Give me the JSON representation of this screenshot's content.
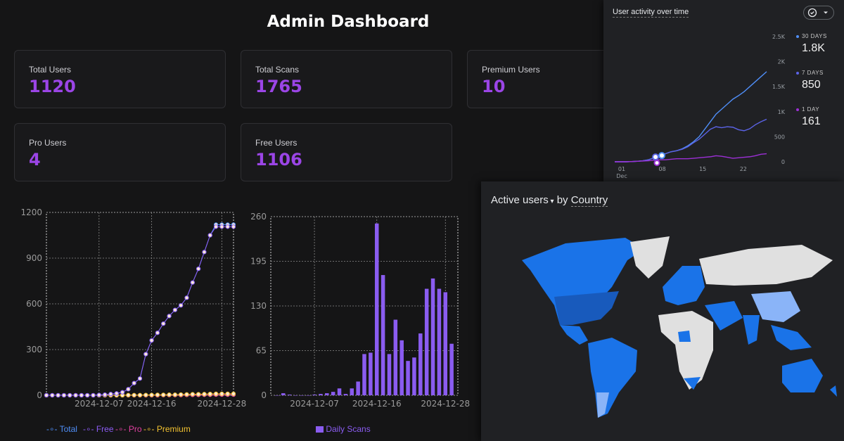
{
  "page": {
    "title": "Admin Dashboard"
  },
  "stats": [
    {
      "label": "Total Users",
      "value": "1120"
    },
    {
      "label": "Total Scans",
      "value": "1765"
    },
    {
      "label": "Premium Users",
      "value": "10"
    },
    {
      "label": "Pro Users",
      "value": "4"
    },
    {
      "label": "Free Users",
      "value": "1106"
    }
  ],
  "colors": {
    "accent": "#9b45e6",
    "total": "#4f8ef7",
    "free": "#8c5cf5",
    "pro": "#e040a0",
    "premium": "#f2c230",
    "scans": "#8a5cf0"
  },
  "chart_data": [
    {
      "type": "line",
      "x": [
        "2024-11-28",
        "2024-11-29",
        "2024-11-30",
        "2024-12-01",
        "2024-12-02",
        "2024-12-03",
        "2024-12-04",
        "2024-12-05",
        "2024-12-06",
        "2024-12-07",
        "2024-12-08",
        "2024-12-09",
        "2024-12-10",
        "2024-12-11",
        "2024-12-12",
        "2024-12-13",
        "2024-12-14",
        "2024-12-15",
        "2024-12-16",
        "2024-12-17",
        "2024-12-18",
        "2024-12-19",
        "2024-12-20",
        "2024-12-21",
        "2024-12-22",
        "2024-12-23",
        "2024-12-24",
        "2024-12-25",
        "2024-12-26",
        "2024-12-27",
        "2024-12-28",
        "2024-12-29",
        "2024-12-30"
      ],
      "xticks": [
        "2024-12-07",
        "2024-12-16",
        "2024-12-28"
      ],
      "ylim": [
        0,
        1200
      ],
      "yticks": [
        0,
        300,
        600,
        900,
        1200
      ],
      "series": [
        {
          "name": "Total",
          "values": [
            0,
            0,
            0,
            0,
            0,
            0,
            0,
            0,
            0,
            2,
            4,
            8,
            12,
            20,
            40,
            80,
            110,
            270,
            360,
            410,
            470,
            520,
            560,
            590,
            640,
            740,
            830,
            940,
            1050,
            1120,
            1120,
            1120,
            1120
          ]
        },
        {
          "name": "Free",
          "values": [
            0,
            0,
            0,
            0,
            0,
            0,
            0,
            0,
            0,
            2,
            4,
            8,
            12,
            20,
            40,
            80,
            110,
            270,
            360,
            410,
            470,
            520,
            560,
            590,
            640,
            740,
            830,
            940,
            1050,
            1106,
            1106,
            1106,
            1106
          ]
        },
        {
          "name": "Pro",
          "values": [
            0,
            0,
            0,
            0,
            0,
            0,
            0,
            0,
            0,
            0,
            0,
            0,
            0,
            0,
            0,
            0,
            0,
            0,
            0,
            0,
            1,
            1,
            1,
            1,
            2,
            2,
            2,
            3,
            3,
            4,
            4,
            4,
            4
          ]
        },
        {
          "name": "Premium",
          "values": [
            0,
            0,
            0,
            0,
            0,
            0,
            0,
            0,
            0,
            0,
            0,
            0,
            0,
            0,
            1,
            1,
            1,
            2,
            2,
            3,
            3,
            4,
            4,
            5,
            6,
            7,
            7,
            8,
            9,
            10,
            10,
            10,
            10
          ]
        }
      ],
      "legend": [
        "Total",
        "Free",
        "Pro",
        "Premium"
      ],
      "grid": true,
      "legend_position": "bottom"
    },
    {
      "type": "bar",
      "ylim": [
        0,
        260
      ],
      "yticks": [
        0,
        65,
        130,
        195,
        260
      ],
      "xticks": [
        "2024-12-07",
        "2024-12-16",
        "2024-12-28"
      ],
      "series": [
        {
          "name": "Daily Scans",
          "values": [
            0,
            3,
            1,
            0,
            0,
            0,
            1,
            2,
            3,
            5,
            10,
            2,
            10,
            20,
            60,
            62,
            250,
            175,
            60,
            110,
            80,
            50,
            55,
            90,
            155,
            170,
            155,
            150,
            75
          ]
        }
      ],
      "grid": true,
      "legend_position": "bottom"
    },
    {
      "type": "line",
      "title": "User activity over time",
      "xticks": [
        "01",
        "08",
        "15",
        "22"
      ],
      "xsub": "Dec",
      "yticks": [
        "0",
        "500",
        "1K",
        "1.5K",
        "2K",
        "2.5K"
      ],
      "ylim": [
        0,
        2500
      ],
      "series": [
        {
          "name": "30 DAYS",
          "summary": "1.8K",
          "values": [
            0,
            0,
            0,
            5,
            10,
            20,
            40,
            80,
            120,
            160,
            200,
            220,
            260,
            320,
            400,
            500,
            650,
            800,
            950,
            1050,
            1150,
            1250,
            1320,
            1400,
            1500,
            1600,
            1700,
            1800
          ]
        },
        {
          "name": "7 DAYS",
          "summary": "850",
          "values": [
            0,
            0,
            0,
            5,
            10,
            20,
            40,
            80,
            120,
            160,
            200,
            220,
            250,
            300,
            380,
            450,
            550,
            650,
            700,
            680,
            700,
            690,
            640,
            620,
            660,
            740,
            800,
            850
          ]
        },
        {
          "name": "1 DAY",
          "summary": "161",
          "values": [
            0,
            0,
            0,
            5,
            10,
            15,
            20,
            30,
            40,
            40,
            50,
            60,
            60,
            60,
            70,
            80,
            90,
            100,
            120,
            110,
            90,
            70,
            80,
            90,
            100,
            120,
            150,
            161
          ]
        }
      ]
    }
  ],
  "map": {
    "metric": "Active users",
    "dimension": "Country",
    "joiner": "by"
  }
}
